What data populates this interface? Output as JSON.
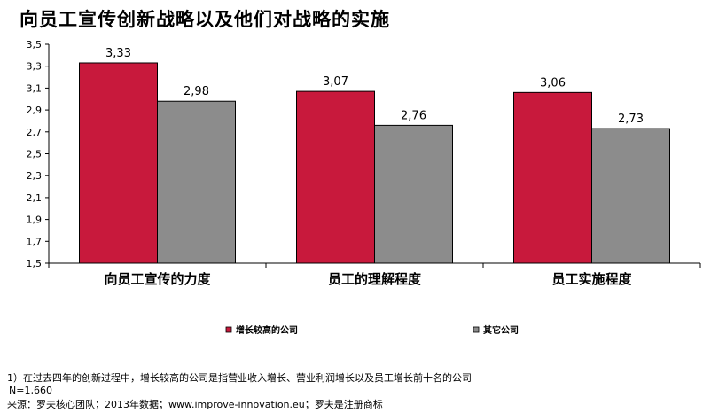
{
  "title": "向员工宣传创新战略以及他们对战略的实施",
  "chart_data": {
    "type": "bar",
    "categories": [
      "向员工宣传的力度",
      "员工的理解程度",
      "员工实施程度"
    ],
    "series": [
      {
        "name": "增长较高的公司",
        "values": [
          3.33,
          3.07,
          3.06
        ],
        "labels": [
          "3,33",
          "3,07",
          "3,06"
        ],
        "color": "#c8193c"
      },
      {
        "name": "其它公司",
        "values": [
          2.98,
          2.76,
          2.73
        ],
        "labels": [
          "2,98",
          "2,76",
          "2,73"
        ],
        "color": "#8c8c8c"
      }
    ],
    "ylim": [
      1.5,
      3.5
    ],
    "yticks": [
      "1,5",
      "1,7",
      "1,9",
      "2,1",
      "2,3",
      "2,5",
      "2,7",
      "2,9",
      "3,1",
      "3,3",
      "3,5"
    ],
    "xlabel": "",
    "ylabel": "",
    "grid": false,
    "legend_position": "bottom"
  },
  "footnotes": {
    "note1": "1）在过去四年的创新过程中，增长较高的公司是指营业收入增长、营业利润增长以及员工增长前十名的公司",
    "sample": "N=1,660",
    "source": "来源：罗夫核心团队；2013年数据；www.improve-innovation.eu；罗夫是注册商标"
  }
}
